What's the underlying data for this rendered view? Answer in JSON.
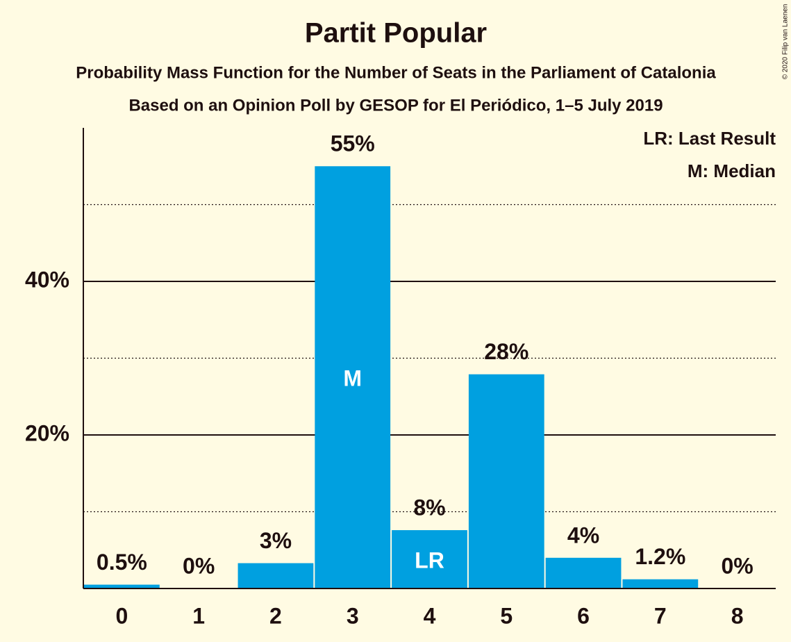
{
  "chart_data": {
    "type": "bar",
    "title": "Partit Popular",
    "subtitle": "Probability Mass Function for the Number of Seats in the Parliament of Catalonia",
    "subtitle2": "Based on an Opinion Poll by GESOP for El Periódico, 1–5 July 2019",
    "credit": "© 2020 Filip van Laenen",
    "categories": [
      "0",
      "1",
      "2",
      "3",
      "4",
      "5",
      "6",
      "7",
      "8"
    ],
    "values": [
      0.5,
      0,
      3.3,
      55,
      7.6,
      27.9,
      4,
      1.2,
      0
    ],
    "value_labels": [
      "0.5%",
      "0%",
      "3%",
      "55%",
      "8%",
      "28%",
      "4%",
      "1.2%",
      "0%"
    ],
    "color": "#00a0e0",
    "ylim": [
      0,
      60
    ],
    "yticks": [
      {
        "value": 20,
        "label": "20%"
      },
      {
        "value": 40,
        "label": "40%"
      }
    ],
    "minor_grid": [
      10,
      30,
      50
    ],
    "grid": true,
    "bar_annotations": [
      {
        "index": 3,
        "label": "M"
      },
      {
        "index": 4,
        "label": "LR"
      }
    ],
    "legend_notes": [
      "LR: Last Result",
      "M: Median"
    ],
    "legend_position": "top-right"
  }
}
